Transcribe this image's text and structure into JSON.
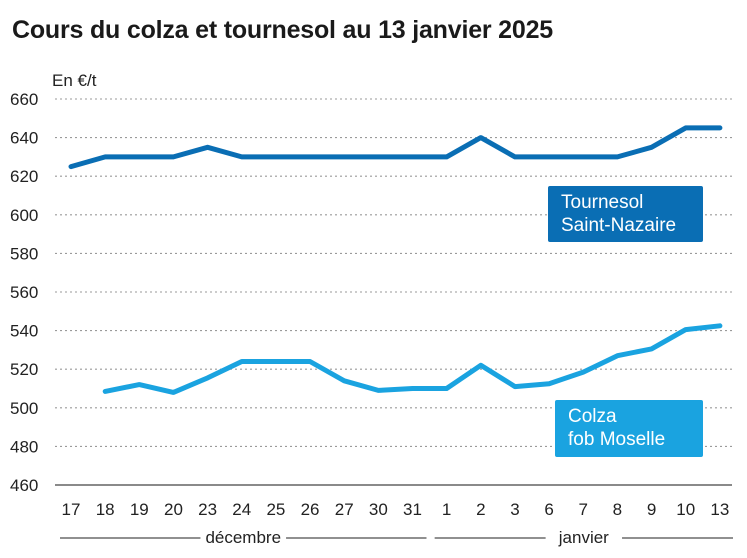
{
  "title": "Cours du colza et tournesol au 13 janvier 2025",
  "chart_data": {
    "type": "line",
    "title": "Cours du colza et tournesol au 13 janvier 2025",
    "ylabel": "En €/t",
    "xlabel": "",
    "ylim": [
      460,
      660
    ],
    "yticks": [
      460,
      480,
      500,
      520,
      540,
      560,
      580,
      600,
      620,
      640,
      660
    ],
    "grid": true,
    "categories": [
      "17",
      "18",
      "19",
      "20",
      "23",
      "24",
      "25",
      "26",
      "27",
      "30",
      "31",
      "1",
      "2",
      "3",
      "6",
      "7",
      "8",
      "9",
      "10",
      "13"
    ],
    "month_groups": [
      {
        "label": "décembre",
        "from": 0,
        "to": 10
      },
      {
        "label": "janvier",
        "from": 11,
        "to": 19
      }
    ],
    "series": [
      {
        "name": "Tournesol Saint-Nazaire",
        "label_lines": [
          "Tournesol",
          "Saint-Nazaire"
        ],
        "color": "#0a6eb4",
        "values": [
          625,
          630,
          630,
          630,
          635,
          630,
          630,
          630,
          630,
          630,
          630,
          630,
          640,
          630,
          630,
          630,
          630,
          635,
          645,
          645
        ]
      },
      {
        "name": "Colza fob Moselle",
        "label_lines": [
          "Colza",
          "fob Moselle"
        ],
        "color": "#1aa3e0",
        "values": [
          null,
          508.5,
          512,
          508,
          515.5,
          524,
          524,
          524,
          514,
          509,
          510,
          510,
          522,
          511,
          512.5,
          518.5,
          527,
          530.5,
          540.5,
          542.5
        ]
      }
    ]
  }
}
